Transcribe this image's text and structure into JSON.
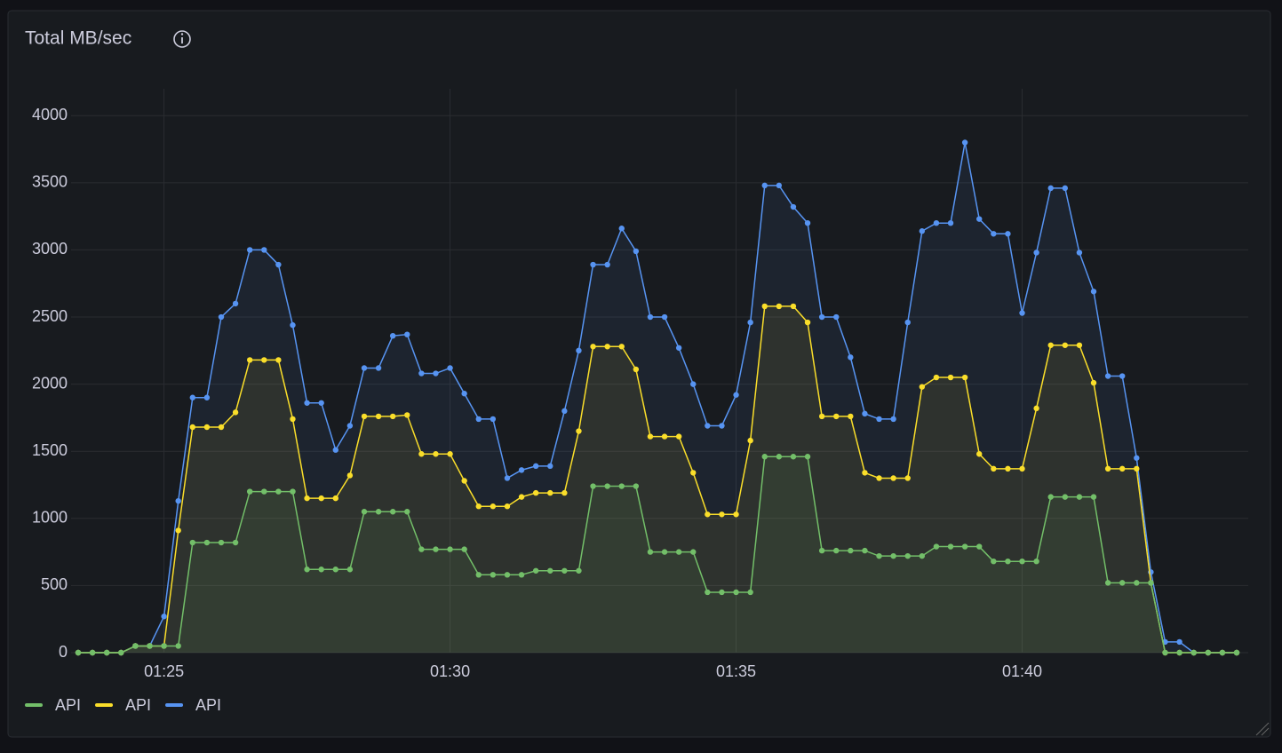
{
  "chart_data": {
    "type": "line",
    "title": "Total MB/sec",
    "x": [
      "01:23:30",
      "01:23:45",
      "01:24:00",
      "01:24:15",
      "01:24:30",
      "01:24:45",
      "01:25:00",
      "01:25:15",
      "01:25:30",
      "01:25:45",
      "01:26:00",
      "01:26:15",
      "01:26:30",
      "01:26:45",
      "01:27:00",
      "01:27:15",
      "01:27:30",
      "01:27:45",
      "01:28:00",
      "01:28:15",
      "01:28:30",
      "01:28:45",
      "01:29:00",
      "01:29:15",
      "01:29:30",
      "01:29:45",
      "01:30:00",
      "01:30:15",
      "01:30:30",
      "01:30:45",
      "01:31:00",
      "01:31:15",
      "01:31:30",
      "01:31:45",
      "01:32:00",
      "01:32:15",
      "01:32:30",
      "01:32:45",
      "01:33:00",
      "01:33:15",
      "01:33:30",
      "01:33:45",
      "01:34:00",
      "01:34:15",
      "01:34:30",
      "01:34:45",
      "01:35:00",
      "01:35:15",
      "01:35:30",
      "01:35:45",
      "01:36:00",
      "01:36:15",
      "01:36:30",
      "01:36:45",
      "01:37:00",
      "01:37:15",
      "01:37:30",
      "01:37:45",
      "01:38:00",
      "01:38:15",
      "01:38:30",
      "01:38:45",
      "01:39:00",
      "01:39:15",
      "01:39:30",
      "01:39:45",
      "01:40:00",
      "01:40:15",
      "01:40:30",
      "01:40:45",
      "01:41:00",
      "01:41:15",
      "01:41:30",
      "01:41:45",
      "01:42:00",
      "01:42:15",
      "01:42:30",
      "01:42:45",
      "01:43:00",
      "01:43:15",
      "01:43:30",
      "01:43:45"
    ],
    "series": [
      {
        "name": "API",
        "color": "#5794f2",
        "values": [
          0,
          0,
          0,
          0,
          50,
          50,
          270,
          1130,
          1900,
          1900,
          2500,
          2600,
          3000,
          3000,
          2890,
          2440,
          1860,
          1860,
          1510,
          1690,
          2120,
          2120,
          2360,
          2370,
          2080,
          2080,
          2120,
          1930,
          1740,
          1740,
          1300,
          1360,
          1390,
          1390,
          1800,
          2250,
          2890,
          2890,
          3160,
          2990,
          2500,
          2500,
          2270,
          2000,
          1690,
          1690,
          1920,
          2460,
          3480,
          3480,
          3320,
          3200,
          2500,
          2500,
          2200,
          1780,
          1740,
          1740,
          2460,
          3140,
          3200,
          3200,
          3800,
          3230,
          3120,
          3120,
          2530,
          2980,
          3460,
          3460,
          2980,
          2690,
          2060,
          2060,
          1450,
          600,
          80,
          80,
          0,
          0,
          0,
          0
        ]
      },
      {
        "name": "API",
        "color": "#fade2a",
        "values": [
          0,
          0,
          0,
          0,
          50,
          50,
          50,
          910,
          1680,
          1680,
          1680,
          1790,
          2180,
          2180,
          2180,
          1740,
          1150,
          1150,
          1150,
          1320,
          1760,
          1760,
          1760,
          1770,
          1480,
          1480,
          1480,
          1280,
          1090,
          1090,
          1090,
          1160,
          1190,
          1190,
          1190,
          1650,
          2280,
          2280,
          2280,
          2110,
          1610,
          1610,
          1610,
          1340,
          1030,
          1030,
          1030,
          1580,
          2580,
          2580,
          2580,
          2460,
          1760,
          1760,
          1760,
          1340,
          1300,
          1300,
          1300,
          1980,
          2050,
          2050,
          2050,
          1480,
          1370,
          1370,
          1370,
          1820,
          2290,
          2290,
          2290,
          2010,
          1370,
          1370,
          1370,
          520,
          0,
          0,
          0,
          0,
          0,
          0
        ]
      },
      {
        "name": "API",
        "color": "#73bf69",
        "values": [
          0,
          0,
          0,
          0,
          50,
          50,
          50,
          50,
          820,
          820,
          820,
          820,
          1200,
          1200,
          1200,
          1200,
          620,
          620,
          620,
          620,
          1050,
          1050,
          1050,
          1050,
          770,
          770,
          770,
          770,
          580,
          580,
          580,
          580,
          610,
          610,
          610,
          610,
          1240,
          1240,
          1240,
          1240,
          750,
          750,
          750,
          750,
          450,
          450,
          450,
          450,
          1460,
          1460,
          1460,
          1460,
          760,
          760,
          760,
          760,
          720,
          720,
          720,
          720,
          790,
          790,
          790,
          790,
          680,
          680,
          680,
          680,
          1160,
          1160,
          1160,
          1160,
          520,
          520,
          520,
          520,
          0,
          0,
          0,
          0,
          0,
          0
        ]
      }
    ],
    "xlim": [
      "01:23:30",
      "01:43:45"
    ],
    "xticks": [
      "01:25",
      "01:30",
      "01:35",
      "01:40"
    ],
    "ylim": [
      0,
      4200
    ],
    "yticks": [
      0,
      500,
      1000,
      1500,
      2000,
      2500,
      3000,
      3500,
      4000
    ],
    "grid": true
  }
}
